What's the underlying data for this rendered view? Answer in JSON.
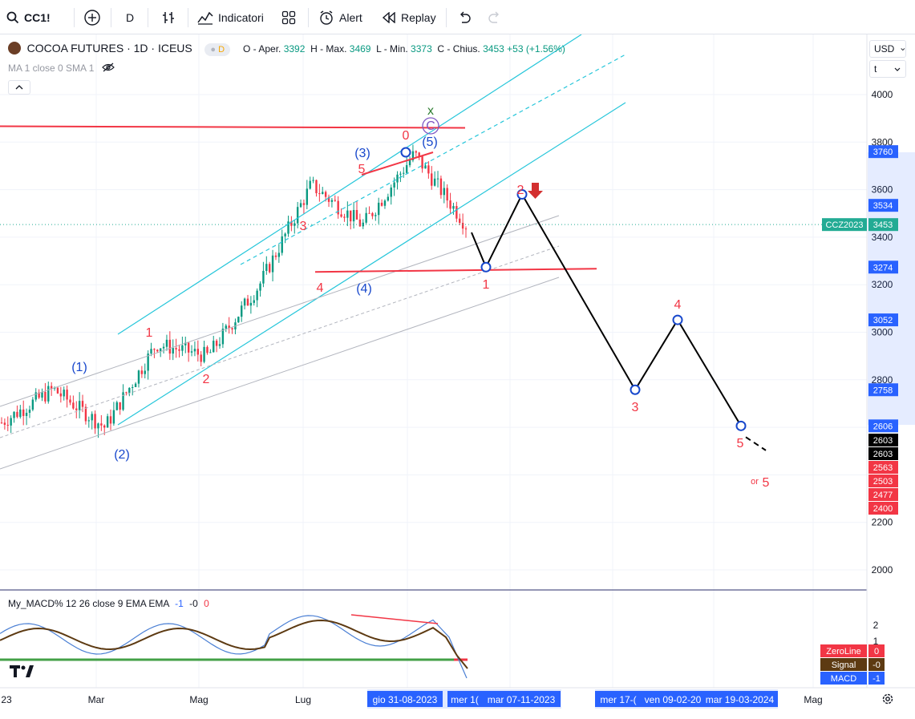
{
  "toolbar": {
    "symbol": "CC1!",
    "interval": "D",
    "indicators": "Indicatori",
    "alert": "Alert",
    "replay": "Replay"
  },
  "legend": {
    "title": "COCOA FUTURES · 1D · ICEUS",
    "badge": "D",
    "open_label": "O - Aper.",
    "open": "3392",
    "high_label": "H - Max.",
    "high": "3469",
    "low_label": "L - Min.",
    "low": "3373",
    "close_label": "C - Chius.",
    "close": "3453",
    "change": "+53 (+1.56%)",
    "ma_label": "MA 1 close 0 SMA 1"
  },
  "currency": {
    "value": "USD",
    "unit": "t"
  },
  "chart_data": [
    {
      "type": "candlestick",
      "title": "COCOA FUTURES · 1D · ICEUS",
      "ylim": [
        1800,
        4200
      ],
      "y_ticks": [
        4000,
        3800,
        3600,
        3400,
        3200,
        3000,
        2800,
        2200,
        2000
      ],
      "x_labels": [
        "23",
        "Mar",
        "Mag",
        "Lug",
        "Mag"
      ],
      "approx_close_path": [
        {
          "t": "Gen 2023",
          "v": 2620
        },
        {
          "t": "Feb 2023",
          "v": 2760
        },
        {
          "t": "Mar 2023",
          "v": 2600
        },
        {
          "t": "Apr 2023",
          "v": 2950
        },
        {
          "t": "Mag 2023",
          "v": 2900
        },
        {
          "t": "Giu 2023",
          "v": 3200
        },
        {
          "t": "Lug 2023",
          "v": 3620
        },
        {
          "t": "Ago 2023",
          "v": 3450
        },
        {
          "t": "Set 2023",
          "v": 3750
        },
        {
          "t": "Ott 2023",
          "v": 3453
        }
      ],
      "horizontal_lines": [
        3860,
        3274
      ],
      "projection_path": [
        3420,
        3274,
        3580,
        2758,
        3052,
        2606
      ],
      "projection_extension": 2503,
      "wave_labels": [
        "(1)",
        "(2)",
        "(3)",
        "(4)",
        "(5)",
        "1",
        "2",
        "3",
        "4",
        "5",
        "1",
        "2",
        "3",
        "4",
        "5",
        "5",
        "0",
        "C",
        "x",
        "or"
      ],
      "price_tags": [
        {
          "label": "3760",
          "color": "#2962ff"
        },
        {
          "label": "3534",
          "color": "#2962ff"
        },
        {
          "label": "3453",
          "color": "#22ab94",
          "name": "CCZ2023"
        },
        {
          "label": "3274",
          "color": "#2962ff"
        },
        {
          "label": "3052",
          "color": "#2962ff"
        },
        {
          "label": "2758",
          "color": "#2962ff"
        },
        {
          "label": "2606",
          "color": "#2962ff"
        },
        {
          "label": "2603",
          "color": "#000000"
        },
        {
          "label": "2603",
          "color": "#000000"
        },
        {
          "label": "2563",
          "color": "#f23645"
        },
        {
          "label": "2503",
          "color": "#f23645"
        },
        {
          "label": "2477",
          "color": "#f23645"
        },
        {
          "label": "2400",
          "color": "#f23645"
        }
      ],
      "date_tags": [
        "gio 31-08-2023",
        "mer 1(",
        "mar 07-11-2023",
        "mer 17-(",
        "ven 09-02-20",
        "mar 19-03-2024"
      ]
    },
    {
      "type": "line",
      "title": "My_MACD% 12 26 close 9 EMA EMA",
      "params": [
        "-1",
        "-0",
        "0"
      ],
      "y_ticks": [
        2,
        1
      ],
      "series": [
        {
          "name": "MACD",
          "color": "#4a7fd4"
        },
        {
          "name": "Signal",
          "color": "#5d3a12"
        },
        {
          "name": "ZeroLine",
          "color": "#43a047"
        }
      ],
      "tags": [
        {
          "name": "ZeroLine",
          "value": "0",
          "color": "#f23645"
        },
        {
          "name": "Signal",
          "value": "-0",
          "color": "#5d3a12"
        },
        {
          "name": "MACD",
          "value": "-1",
          "color": "#2962ff"
        }
      ]
    }
  ]
}
